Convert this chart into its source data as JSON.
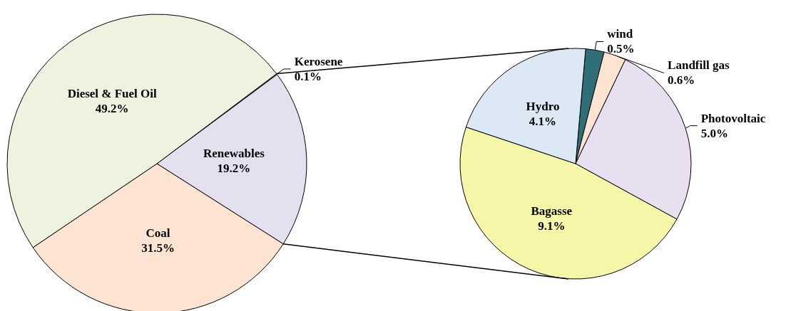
{
  "chart_data": [
    {
      "type": "pie",
      "categories": [
        "Kerosene",
        "Renewables",
        "Coal",
        "Diesel & Fuel Oil"
      ],
      "values": [
        0.1,
        19.2,
        31.5,
        49.2
      ],
      "value_labels": [
        "0.1%",
        "19.2%",
        "31.5%",
        "49.2%"
      ],
      "colors": [
        "#d9d9d9",
        "#e4e0f0",
        "#fde4d2",
        "#eef3e0"
      ],
      "legend": false
    },
    {
      "type": "pie",
      "categories": [
        "wind",
        "Landfill gas",
        "Photovoltaic",
        "Bagasse",
        "Hydro"
      ],
      "values": [
        0.5,
        0.6,
        5.0,
        9.1,
        4.1
      ],
      "value_labels": [
        "0.5%",
        "0.6%",
        "5.0%",
        "9.1%",
        "4.1%"
      ],
      "colors": [
        "#2f6f78",
        "#fde4d2",
        "#e8e0f0",
        "#f6f6a8",
        "#dce9f5"
      ],
      "legend": false
    }
  ]
}
